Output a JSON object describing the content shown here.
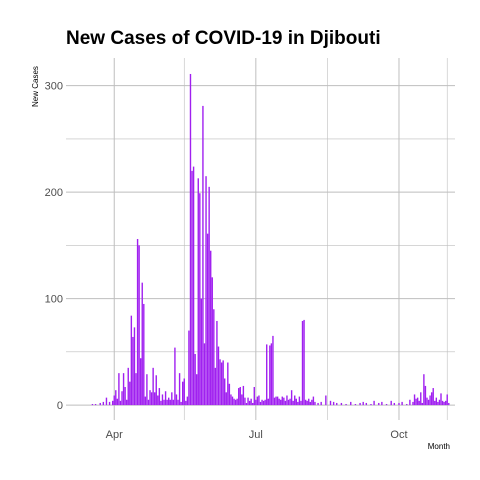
{
  "chart_data": {
    "type": "bar",
    "title": "New Cases of COVID-19 in Djibouti",
    "xlabel": "Month",
    "ylabel": "New Cases",
    "color": "#a020f0",
    "background": "#ffffff",
    "grid": true,
    "grid_color": "#bebebe",
    "legend": "none",
    "x_start": "2020-03-01",
    "x_end": "2020-11-06",
    "xlim": [
      "2020-03-01",
      "2020-11-06"
    ],
    "ylim": [
      -14,
      326
    ],
    "y_ticks": [
      0,
      100,
      200,
      300
    ],
    "y_tick_labels": [
      "0",
      "100",
      "200",
      "300"
    ],
    "x_ticks": [
      "2020-04-01",
      "2020-07-01",
      "2020-10-01"
    ],
    "x_tick_labels": [
      "Apr",
      "Jul",
      "Oct"
    ],
    "x_minor_ticks": [
      "2020-05-16",
      "2020-08-16",
      "2020-11-01"
    ],
    "series": [
      {
        "dates": [
          "2020-03-18",
          "2020-03-20",
          "2020-03-23",
          "2020-03-25",
          "2020-03-27",
          "2020-03-29",
          "2020-03-31",
          "2020-04-01",
          "2020-04-02",
          "2020-04-03",
          "2020-04-04",
          "2020-04-05",
          "2020-04-06",
          "2020-04-07",
          "2020-04-08",
          "2020-04-09",
          "2020-04-10",
          "2020-04-11",
          "2020-04-12",
          "2020-04-13",
          "2020-04-14",
          "2020-04-15",
          "2020-04-16",
          "2020-04-17",
          "2020-04-18",
          "2020-04-19",
          "2020-04-20",
          "2020-04-21",
          "2020-04-22",
          "2020-04-23",
          "2020-04-24",
          "2020-04-25",
          "2020-04-26",
          "2020-04-27",
          "2020-04-28",
          "2020-04-29",
          "2020-04-30",
          "2020-05-01",
          "2020-05-02",
          "2020-05-03",
          "2020-05-04",
          "2020-05-05",
          "2020-05-06",
          "2020-05-07",
          "2020-05-08",
          "2020-05-09",
          "2020-05-10",
          "2020-05-11",
          "2020-05-12",
          "2020-05-13",
          "2020-05-14",
          "2020-05-15",
          "2020-05-16",
          "2020-05-17",
          "2020-05-18",
          "2020-05-19",
          "2020-05-20",
          "2020-05-21",
          "2020-05-22",
          "2020-05-23",
          "2020-05-24",
          "2020-05-25",
          "2020-05-26",
          "2020-05-27",
          "2020-05-28",
          "2020-05-29",
          "2020-05-30",
          "2020-05-31",
          "2020-06-01",
          "2020-06-02",
          "2020-06-03",
          "2020-06-04",
          "2020-06-05",
          "2020-06-06",
          "2020-06-07",
          "2020-06-08",
          "2020-06-09",
          "2020-06-10",
          "2020-06-11",
          "2020-06-12",
          "2020-06-13",
          "2020-06-14",
          "2020-06-15",
          "2020-06-16",
          "2020-06-17",
          "2020-06-18",
          "2020-06-19",
          "2020-06-20",
          "2020-06-21",
          "2020-06-22",
          "2020-06-23",
          "2020-06-24",
          "2020-06-25",
          "2020-06-26",
          "2020-06-27",
          "2020-06-28",
          "2020-06-29",
          "2020-06-30",
          "2020-07-01",
          "2020-07-02",
          "2020-07-03",
          "2020-07-04",
          "2020-07-05",
          "2020-07-06",
          "2020-07-07",
          "2020-07-08",
          "2020-07-09",
          "2020-07-10",
          "2020-07-11",
          "2020-07-12",
          "2020-07-13",
          "2020-07-14",
          "2020-07-15",
          "2020-07-16",
          "2020-07-17",
          "2020-07-18",
          "2020-07-19",
          "2020-07-20",
          "2020-07-21",
          "2020-07-22",
          "2020-07-23",
          "2020-07-24",
          "2020-07-25",
          "2020-07-26",
          "2020-07-27",
          "2020-07-28",
          "2020-07-29",
          "2020-07-30",
          "2020-07-31",
          "2020-08-01",
          "2020-08-02",
          "2020-08-03",
          "2020-08-04",
          "2020-08-05",
          "2020-08-06",
          "2020-08-07",
          "2020-08-08",
          "2020-08-10",
          "2020-08-12",
          "2020-08-15",
          "2020-08-18",
          "2020-08-20",
          "2020-08-22",
          "2020-08-25",
          "2020-08-28",
          "2020-08-31",
          "2020-09-03",
          "2020-09-06",
          "2020-09-08",
          "2020-09-10",
          "2020-09-13",
          "2020-09-15",
          "2020-09-18",
          "2020-09-20",
          "2020-09-23",
          "2020-09-26",
          "2020-09-28",
          "2020-10-01",
          "2020-10-03",
          "2020-10-06",
          "2020-10-08",
          "2020-10-10",
          "2020-10-11",
          "2020-10-12",
          "2020-10-13",
          "2020-10-14",
          "2020-10-15",
          "2020-10-16",
          "2020-10-17",
          "2020-10-18",
          "2020-10-19",
          "2020-10-20",
          "2020-10-21",
          "2020-10-22",
          "2020-10-23",
          "2020-10-24",
          "2020-10-25",
          "2020-10-26",
          "2020-10-27",
          "2020-10-28",
          "2020-10-29",
          "2020-10-30",
          "2020-10-31",
          "2020-11-01",
          "2020-11-02"
        ],
        "values": [
          1,
          1,
          2,
          3,
          7,
          3,
          4,
          9,
          14,
          6,
          30,
          4,
          13,
          30,
          17,
          5,
          35,
          22,
          84,
          64,
          73,
          30,
          156,
          150,
          44,
          115,
          95,
          8,
          29,
          5,
          14,
          12,
          35,
          12,
          28,
          9,
          16,
          4,
          10,
          5,
          13,
          5,
          7,
          5,
          12,
          5,
          54,
          10,
          5,
          30,
          3,
          22,
          25,
          4,
          8,
          70,
          311,
          220,
          224,
          48,
          29,
          213,
          199,
          100,
          281,
          58,
          215,
          161,
          205,
          145,
          120,
          90,
          35,
          79,
          55,
          43,
          40,
          42,
          25,
          12,
          40,
          20,
          10,
          8,
          6,
          5,
          6,
          16,
          17,
          10,
          18,
          7,
          2,
          7,
          4,
          6,
          2,
          17,
          5,
          8,
          9,
          3,
          5,
          4,
          5,
          57,
          6,
          56,
          58,
          65,
          7,
          8,
          8,
          6,
          5,
          8,
          7,
          4,
          9,
          5,
          6,
          14,
          4,
          9,
          6,
          3,
          8,
          4,
          79,
          80,
          5,
          4,
          6,
          3,
          5,
          8,
          3,
          2,
          3,
          9,
          4,
          3,
          2,
          2,
          1,
          3,
          1,
          2,
          3,
          2,
          1,
          4,
          2,
          3,
          1,
          4,
          2,
          2,
          3,
          1,
          5,
          3,
          10,
          6,
          7,
          4,
          12,
          2,
          29,
          18,
          7,
          5,
          9,
          12,
          16,
          4,
          7,
          3,
          5,
          11,
          4,
          3,
          4,
          10,
          2
        ]
      }
    ]
  }
}
